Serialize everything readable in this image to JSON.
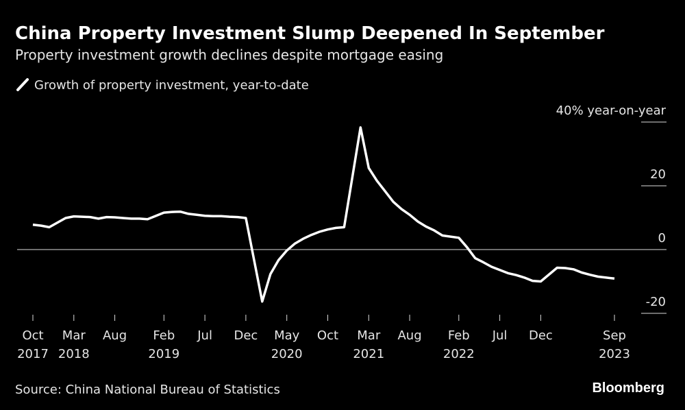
{
  "chart_data": {
    "type": "line",
    "title": "China Property Investment Slump Deepened In September",
    "subtitle": "Property investment growth declines despite mortgage easing",
    "source": "Source: China National Bureau of Statistics",
    "brand": "Bloomberg",
    "x": [
      "2017-10",
      "2017-11",
      "2017-12",
      "2018-02",
      "2018-03",
      "2018-04",
      "2018-05",
      "2018-06",
      "2018-07",
      "2018-08",
      "2018-09",
      "2018-10",
      "2018-11",
      "2018-12",
      "2019-02",
      "2019-03",
      "2019-04",
      "2019-05",
      "2019-06",
      "2019-07",
      "2019-08",
      "2019-09",
      "2019-10",
      "2019-11",
      "2019-12",
      "2020-02",
      "2020-03",
      "2020-04",
      "2020-05",
      "2020-06",
      "2020-07",
      "2020-08",
      "2020-09",
      "2020-10",
      "2020-11",
      "2020-12",
      "2021-02",
      "2021-03",
      "2021-04",
      "2021-05",
      "2021-06",
      "2021-07",
      "2021-08",
      "2021-09",
      "2021-10",
      "2021-11",
      "2021-12",
      "2022-02",
      "2022-03",
      "2022-04",
      "2022-05",
      "2022-06",
      "2022-07",
      "2022-08",
      "2022-09",
      "2022-10",
      "2022-11",
      "2022-12",
      "2023-02",
      "2023-03",
      "2023-04",
      "2023-05",
      "2023-06",
      "2023-07",
      "2023-08",
      "2023-09"
    ],
    "series": [
      {
        "name": "Growth of property investment, year-to-date",
        "color": "#ffffff",
        "values": [
          7.8,
          7.5,
          7.0,
          9.9,
          10.4,
          10.3,
          10.2,
          9.7,
          10.2,
          10.1,
          9.9,
          9.7,
          9.7,
          9.5,
          11.6,
          11.8,
          11.9,
          11.2,
          10.9,
          10.6,
          10.5,
          10.5,
          10.3,
          10.2,
          9.9,
          -16.3,
          -7.7,
          -3.3,
          -0.3,
          1.9,
          3.4,
          4.6,
          5.6,
          6.3,
          6.8,
          7.0,
          38.3,
          25.6,
          21.6,
          18.3,
          15.0,
          12.7,
          10.9,
          8.8,
          7.2,
          6.0,
          4.4,
          3.7,
          0.7,
          -2.7,
          -4.0,
          -5.4,
          -6.4,
          -7.4,
          -8.0,
          -8.8,
          -9.8,
          -10.0,
          -5.7,
          -5.8,
          -6.2,
          -7.2,
          -7.9,
          -8.5,
          -8.8,
          -9.1
        ]
      }
    ],
    "xlim": [
      "2017-10",
      "2023-09"
    ],
    "xticks": [
      {
        "value": "2017-10",
        "label": [
          "Oct",
          "2017"
        ]
      },
      {
        "value": "2018-03",
        "label": [
          "Mar",
          "2018"
        ]
      },
      {
        "value": "2018-08",
        "label": [
          "Aug"
        ]
      },
      {
        "value": "2019-02",
        "label": [
          "Feb",
          "2019"
        ]
      },
      {
        "value": "2019-07",
        "label": [
          "Jul"
        ]
      },
      {
        "value": "2019-12",
        "label": [
          "Dec"
        ]
      },
      {
        "value": "2020-05",
        "label": [
          "May",
          "2020"
        ]
      },
      {
        "value": "2020-10",
        "label": [
          "Oct"
        ]
      },
      {
        "value": "2021-03",
        "label": [
          "Mar",
          "2021"
        ]
      },
      {
        "value": "2021-08",
        "label": [
          "Aug"
        ]
      },
      {
        "value": "2022-02",
        "label": [
          "Feb",
          "2022"
        ]
      },
      {
        "value": "2022-07",
        "label": [
          "Jul"
        ]
      },
      {
        "value": "2022-12",
        "label": [
          "Dec"
        ]
      },
      {
        "value": "2023-09",
        "label": [
          "Sep",
          "2023"
        ]
      }
    ],
    "ylim": [
      -20,
      40
    ],
    "yticks": [
      -20,
      0,
      20,
      {
        "value": 40,
        "label": "40% year-on-year"
      }
    ]
  }
}
